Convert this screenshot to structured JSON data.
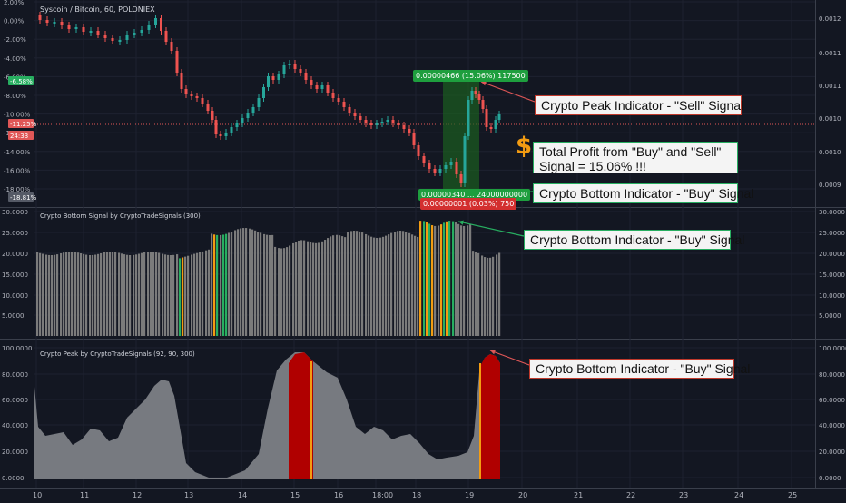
{
  "symbol_title": "Syscoin / Bitcoin, 60, POLONIEX",
  "panes": {
    "price": {
      "left_ticks": [
        "2.00%",
        "0.00%",
        "-2.00%",
        "-4.00%",
        "-6.00%",
        "-8.00%",
        "-10.00%",
        "-12.00%",
        "-14.00%",
        "-16.00%",
        "-18.00%"
      ],
      "right_ticks": [
        "0.0012",
        "0.0011",
        "0.0011",
        "0.0010",
        "0.0010",
        "0.0009"
      ],
      "left_badges": [
        {
          "text": "-6.58%",
          "color": "#27ae60"
        },
        {
          "text": "-11.25%",
          "color": "#e05757"
        },
        {
          "text": "24:33",
          "color": "#e05757"
        },
        {
          "text": "-18.81%",
          "color": "#555a66"
        }
      ],
      "peak_box": "0.00000466 (15.06%) 117500",
      "bottom_box_top": "0.00000340 ... 24000000000",
      "bottom_box": "0.00000001 (0.03%) 750"
    },
    "signal": {
      "label": "Crypto Bottom Signal by CryptoTradeSignals (300)",
      "ticks": [
        "30.0000",
        "25.0000",
        "20.0000",
        "15.0000",
        "10.0000",
        "5.0000"
      ]
    },
    "peak": {
      "label": "Crypto Peak by CryptoTradeSignals (92, 90, 300)",
      "ticks": [
        "100.0000",
        "80.0000",
        "60.0000",
        "40.0000",
        "20.0000",
        "0.0000"
      ]
    }
  },
  "x_axis": [
    "10",
    "11",
    "12",
    "13",
    "14",
    "15",
    "16",
    "18:00",
    "18",
    "19",
    "20",
    "21",
    "22",
    "23",
    "24",
    "25"
  ],
  "callouts": {
    "sell": "Crypto Peak Indicator - \"Sell\" Signal",
    "profit": "Total Profit from \"Buy\" and \"Sell\" Signal = 15.06% !!!",
    "buy1": "Crypto Bottom Indicator - \"Buy\" Signal",
    "buy2": "Crypto Bottom Indicator - \"Buy\" Signal",
    "buy3": "Crypto Bottom Indicator - \"Buy\" Signal",
    "dollar": "$"
  },
  "colors": {
    "background": "#131722",
    "up": "#26a69a",
    "down": "#ef5350",
    "signal_green": "#27ae60",
    "signal_orange": "#f39c12",
    "peak_red": "#b00000",
    "bars_gray": "#7b7b7b"
  }
}
